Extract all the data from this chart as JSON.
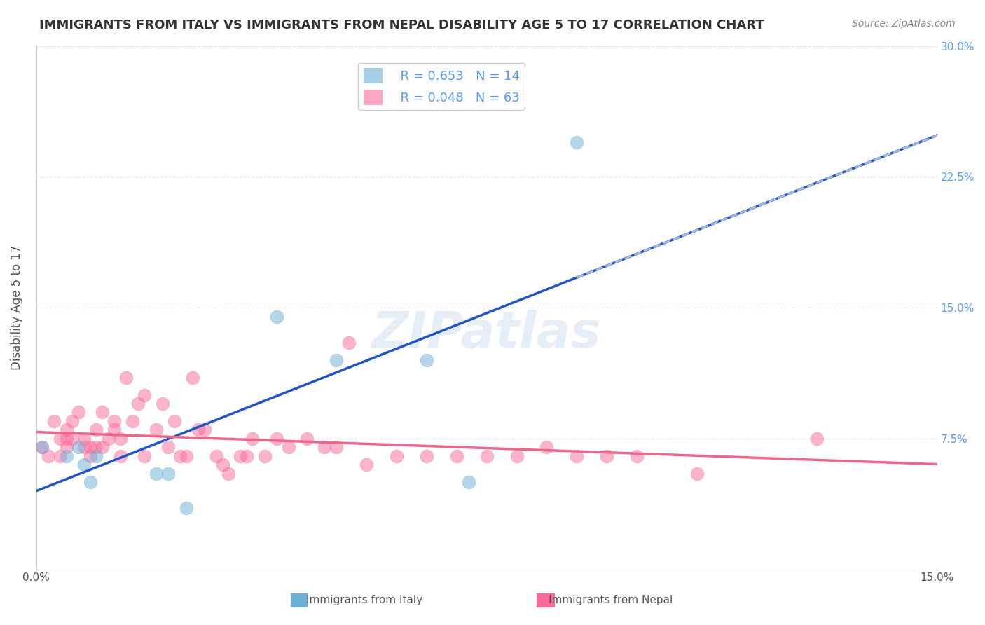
{
  "title": "IMMIGRANTS FROM ITALY VS IMMIGRANTS FROM NEPAL DISABILITY AGE 5 TO 17 CORRELATION CHART",
  "source": "Source: ZipAtlas.com",
  "xlabel": "",
  "ylabel": "Disability Age 5 to 17",
  "xlim": [
    0.0,
    0.15
  ],
  "ylim": [
    0.0,
    0.3
  ],
  "xticks": [
    0.0,
    0.05,
    0.1,
    0.15
  ],
  "yticks": [
    0.0,
    0.075,
    0.15,
    0.225,
    0.3
  ],
  "xticklabels": [
    "0.0%",
    "",
    "",
    "15.0%"
  ],
  "yticklabels_right": [
    "",
    "7.5%",
    "15.0%",
    "22.5%",
    "30.0%"
  ],
  "italy_color": "#6baed6",
  "nepal_color": "#fb6a9a",
  "italy_R": 0.653,
  "italy_N": 14,
  "nepal_R": 0.048,
  "nepal_N": 63,
  "watermark": "ZIPatlas",
  "italy_x": [
    0.001,
    0.005,
    0.007,
    0.008,
    0.009,
    0.01,
    0.02,
    0.022,
    0.025,
    0.04,
    0.05,
    0.065,
    0.072,
    0.09
  ],
  "italy_y": [
    0.07,
    0.065,
    0.07,
    0.06,
    0.05,
    0.065,
    0.055,
    0.055,
    0.035,
    0.145,
    0.12,
    0.12,
    0.05,
    0.245
  ],
  "nepal_x": [
    0.001,
    0.002,
    0.003,
    0.004,
    0.004,
    0.005,
    0.005,
    0.005,
    0.006,
    0.006,
    0.007,
    0.008,
    0.008,
    0.009,
    0.009,
    0.01,
    0.01,
    0.011,
    0.011,
    0.012,
    0.013,
    0.013,
    0.014,
    0.014,
    0.015,
    0.016,
    0.017,
    0.018,
    0.018,
    0.02,
    0.021,
    0.022,
    0.023,
    0.024,
    0.025,
    0.026,
    0.027,
    0.028,
    0.03,
    0.031,
    0.032,
    0.034,
    0.035,
    0.036,
    0.038,
    0.04,
    0.042,
    0.045,
    0.048,
    0.05,
    0.052,
    0.055,
    0.06,
    0.065,
    0.07,
    0.075,
    0.08,
    0.085,
    0.09,
    0.095,
    0.1,
    0.11,
    0.13
  ],
  "nepal_y": [
    0.07,
    0.065,
    0.085,
    0.065,
    0.075,
    0.08,
    0.075,
    0.07,
    0.085,
    0.075,
    0.09,
    0.075,
    0.07,
    0.07,
    0.065,
    0.07,
    0.08,
    0.09,
    0.07,
    0.075,
    0.085,
    0.08,
    0.065,
    0.075,
    0.11,
    0.085,
    0.095,
    0.1,
    0.065,
    0.08,
    0.095,
    0.07,
    0.085,
    0.065,
    0.065,
    0.11,
    0.08,
    0.08,
    0.065,
    0.06,
    0.055,
    0.065,
    0.065,
    0.075,
    0.065,
    0.075,
    0.07,
    0.075,
    0.07,
    0.07,
    0.13,
    0.06,
    0.065,
    0.065,
    0.065,
    0.065,
    0.065,
    0.07,
    0.065,
    0.065,
    0.065,
    0.055,
    0.075
  ],
  "background_color": "#ffffff",
  "grid_color": "#dddddd"
}
